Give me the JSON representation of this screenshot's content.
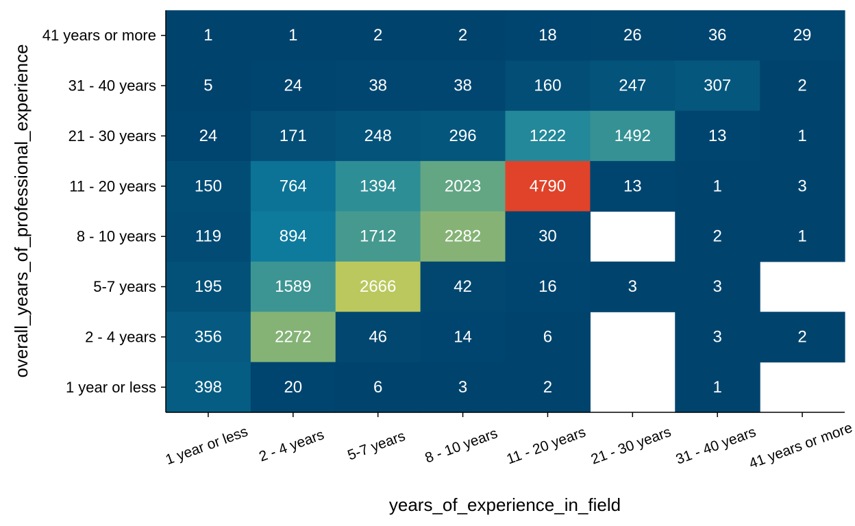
{
  "chart_data": {
    "type": "heatmap",
    "title": "",
    "xlabel": "years_of_experience_in_field",
    "ylabel": "overall_years_of_professional_experience",
    "x_categories": [
      "1 year or less",
      "2 - 4 years",
      "5-7 years",
      "8 - 10 years",
      "11 - 20 years",
      "21 - 30 years",
      "31 - 40 years",
      "41 years or more"
    ],
    "y_categories": [
      "41 years or more",
      "31 - 40 years",
      "21 - 30 years",
      "11 - 20 years",
      "8 - 10 years",
      "5-7 years",
      "2 - 4 years",
      "1 year or less"
    ],
    "values": [
      [
        1,
        1,
        2,
        2,
        18,
        26,
        36,
        29
      ],
      [
        5,
        24,
        38,
        38,
        160,
        247,
        307,
        2
      ],
      [
        24,
        171,
        248,
        296,
        1222,
        1492,
        13,
        1
      ],
      [
        150,
        764,
        1394,
        2023,
        4790,
        13,
        1,
        3
      ],
      [
        119,
        894,
        1712,
        2282,
        30,
        null,
        2,
        1
      ],
      [
        195,
        1589,
        2666,
        42,
        16,
        3,
        3,
        null
      ],
      [
        356,
        2272,
        46,
        14,
        6,
        null,
        3,
        2
      ],
      [
        398,
        20,
        6,
        3,
        2,
        null,
        1,
        null
      ]
    ],
    "color_scale": [
      "#00446e",
      "#0f7fa0",
      "#54a08a",
      "#d6d352",
      "#edc437",
      "#e0432a"
    ],
    "grid": false
  }
}
